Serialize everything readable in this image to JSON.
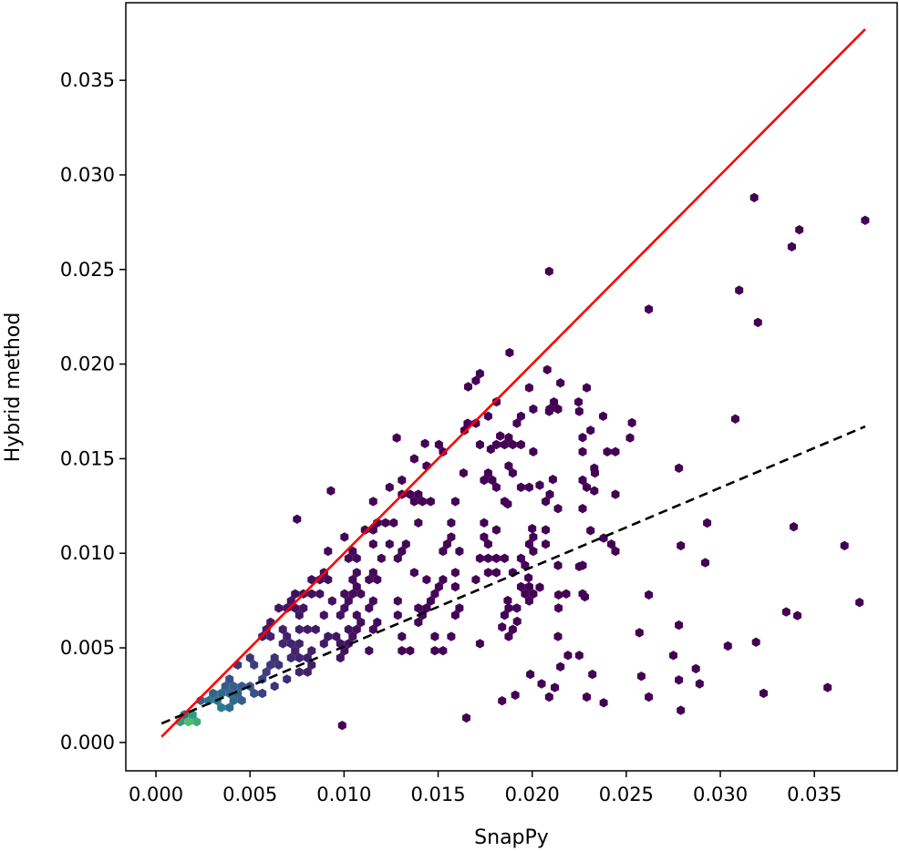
{
  "chart_data": {
    "type": "hexbin-scatter",
    "xlabel": "SnapPy",
    "ylabel": "Hybrid method",
    "xlim": [
      -0.0016,
      0.0394
    ],
    "ylim": [
      -0.0015,
      0.0391
    ],
    "xticks": [
      "0.000",
      "0.005",
      "0.010",
      "0.015",
      "0.020",
      "0.025",
      "0.030",
      "0.035"
    ],
    "yticks": [
      "0.000",
      "0.005",
      "0.010",
      "0.015",
      "0.020",
      "0.025",
      "0.030",
      "0.035"
    ],
    "colormap": "viridis",
    "grid": false,
    "series": [
      {
        "kind": "line",
        "style": "solid",
        "color": "#ff0000",
        "x": [
          0.0003,
          0.0377
        ],
        "y": [
          0.0003,
          0.0377
        ]
      },
      {
        "kind": "line",
        "style": "dashed",
        "color": "#000000",
        "x": [
          0.0003,
          0.0377
        ],
        "y": [
          0.001,
          0.0167
        ]
      }
    ],
    "points": [
      [
        0.0318,
        0.0288
      ],
      [
        0.0377,
        0.0276
      ],
      [
        0.0342,
        0.0271
      ],
      [
        0.0338,
        0.0262
      ],
      [
        0.0209,
        0.0249
      ],
      [
        0.031,
        0.0239
      ],
      [
        0.0262,
        0.0229
      ],
      [
        0.032,
        0.0222
      ],
      [
        0.0188,
        0.0206
      ],
      [
        0.0208,
        0.0197
      ],
      [
        0.0215,
        0.019
      ],
      [
        0.0166,
        0.0188
      ],
      [
        0.0181,
        0.018
      ],
      [
        0.0209,
        0.0175
      ],
      [
        0.0225,
        0.0175
      ],
      [
        0.0308,
        0.0171
      ],
      [
        0.0253,
        0.0169
      ],
      [
        0.0231,
        0.0165
      ],
      [
        0.0164,
        0.0165
      ],
      [
        0.0252,
        0.0161
      ],
      [
        0.0128,
        0.0161
      ],
      [
        0.0143,
        0.0158
      ],
      [
        0.0183,
        0.0162
      ],
      [
        0.0178,
        0.0155
      ],
      [
        0.0278,
        0.0145
      ],
      [
        0.0233,
        0.0145
      ],
      [
        0.0211,
        0.0139
      ],
      [
        0.0204,
        0.0136
      ],
      [
        0.0233,
        0.0133
      ],
      [
        0.0187,
        0.0126
      ],
      [
        0.0093,
        0.0133
      ],
      [
        0.0075,
        0.0118
      ],
      [
        0.0293,
        0.0116
      ],
      [
        0.0339,
        0.0114
      ],
      [
        0.02,
        0.0113
      ],
      [
        0.0231,
        0.0112
      ],
      [
        0.0238,
        0.0108
      ],
      [
        0.0279,
        0.0104
      ],
      [
        0.0366,
        0.0104
      ],
      [
        0.0292,
        0.0095
      ],
      [
        0.0225,
        0.0093
      ],
      [
        0.0198,
        0.0087
      ],
      [
        0.0204,
        0.0082
      ],
      [
        0.0214,
        0.0078
      ],
      [
        0.0262,
        0.0078
      ],
      [
        0.0228,
        0.0077
      ],
      [
        0.0187,
        0.0075
      ],
      [
        0.0374,
        0.0074
      ],
      [
        0.0214,
        0.0071
      ],
      [
        0.0335,
        0.0069
      ],
      [
        0.0341,
        0.0067
      ],
      [
        0.0278,
        0.0062
      ],
      [
        0.0192,
        0.0064
      ],
      [
        0.0184,
        0.0061
      ],
      [
        0.0257,
        0.0058
      ],
      [
        0.0304,
        0.0051
      ],
      [
        0.0319,
        0.0053
      ],
      [
        0.0275,
        0.0046
      ],
      [
        0.0287,
        0.0039
      ],
      [
        0.0232,
        0.0036
      ],
      [
        0.0258,
        0.0035
      ],
      [
        0.0278,
        0.0033
      ],
      [
        0.0289,
        0.0031
      ],
      [
        0.0229,
        0.0024
      ],
      [
        0.0262,
        0.0024
      ],
      [
        0.0357,
        0.0029
      ],
      [
        0.0323,
        0.0026
      ],
      [
        0.0279,
        0.0017
      ],
      [
        0.0238,
        0.0021
      ],
      [
        0.0209,
        0.0024
      ],
      [
        0.0165,
        0.0013
      ],
      [
        0.0099,
        0.0009
      ],
      [
        0.0219,
        0.0046
      ],
      [
        0.0225,
        0.0046
      ],
      [
        0.0215,
        0.004
      ],
      [
        0.0199,
        0.0036
      ],
      [
        0.0205,
        0.0031
      ],
      [
        0.0212,
        0.0029
      ],
      [
        0.0191,
        0.0025
      ],
      [
        0.0184,
        0.0022
      ]
    ]
  }
}
